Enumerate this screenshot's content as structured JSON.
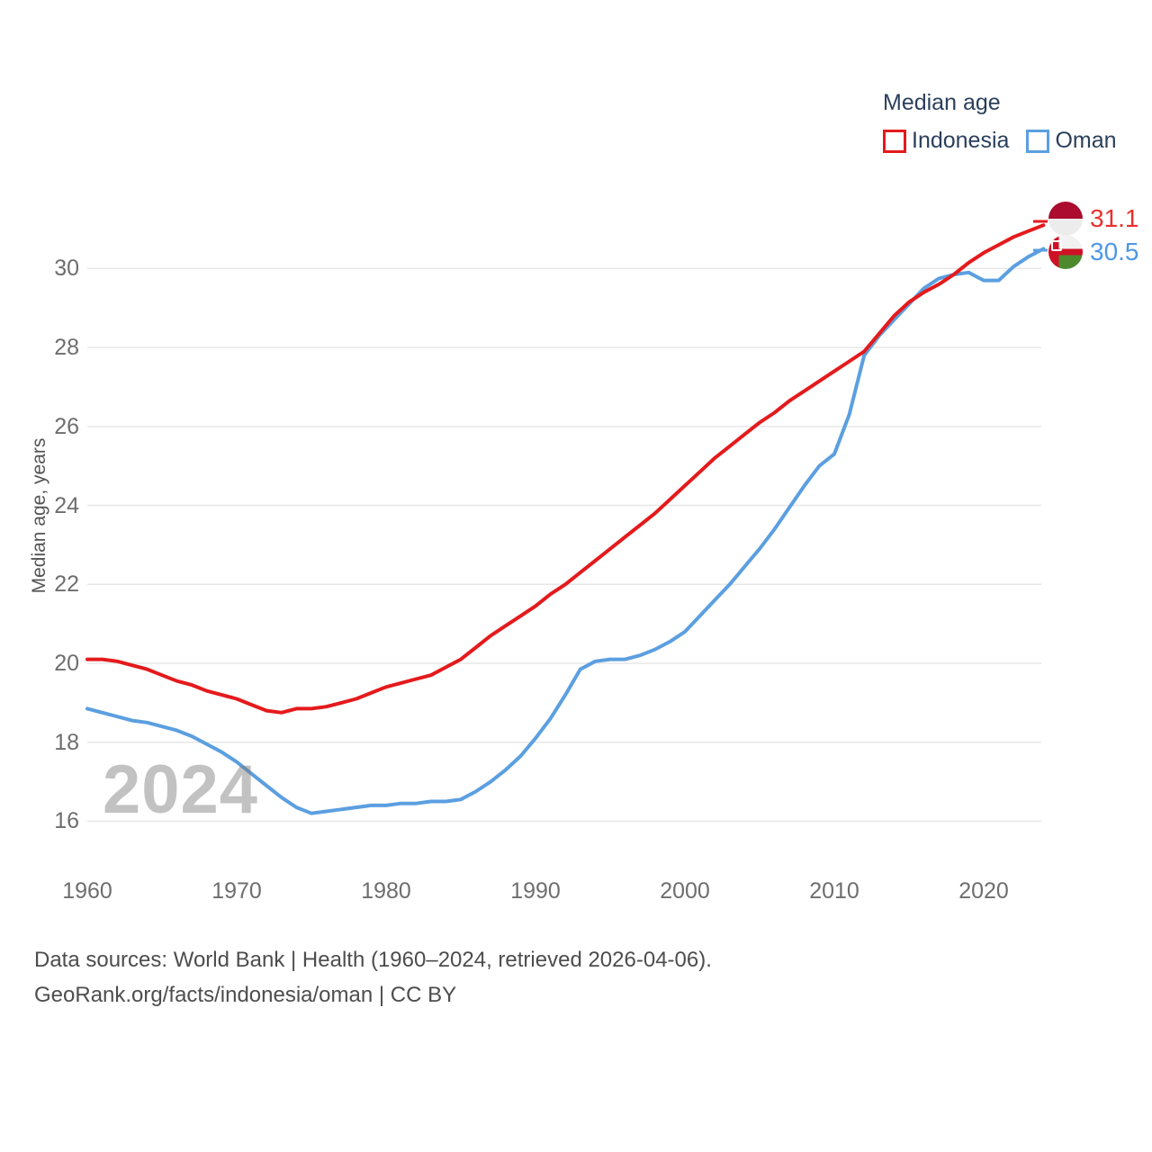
{
  "page": {
    "background": "#ffffff"
  },
  "legend": {
    "title": "Median age",
    "items": [
      {
        "label": "Indonesia",
        "color": "#e41a1c"
      },
      {
        "label": "Oman",
        "color": "#5b9fe0"
      }
    ]
  },
  "end_labels": [
    {
      "series": "Indonesia",
      "value": "31.1",
      "color": "#e8312f",
      "flag": "indonesia-flag"
    },
    {
      "series": "Oman",
      "value": "30.5",
      "color": "#4e97e3",
      "flag": "oman-flag"
    }
  ],
  "watermark": "2024",
  "y_axis": {
    "title": "Median age, years",
    "ticks": [
      30,
      28,
      26,
      24,
      22,
      20,
      18,
      16
    ]
  },
  "x_axis": {
    "ticks": [
      1960,
      1970,
      1980,
      1990,
      2000,
      2010,
      2020
    ]
  },
  "footer": {
    "line1": "Data sources: World Bank | Health (1960–2024, retrieved 2026-04-06).",
    "line2": "GeoRank.org/facts/indonesia/oman | CC BY"
  },
  "chart_data": {
    "type": "line",
    "title": "Median age",
    "xlabel": "",
    "ylabel": "Median age, years",
    "xlim": [
      1960,
      2024
    ],
    "ylim": [
      15.5,
      31.5
    ],
    "grid": "horizontal",
    "legend_position": "top-right",
    "x": [
      1960,
      1961,
      1962,
      1963,
      1964,
      1965,
      1966,
      1967,
      1968,
      1969,
      1970,
      1971,
      1972,
      1973,
      1974,
      1975,
      1976,
      1977,
      1978,
      1979,
      1980,
      1981,
      1982,
      1983,
      1984,
      1985,
      1986,
      1987,
      1988,
      1989,
      1990,
      1991,
      1992,
      1993,
      1994,
      1995,
      1996,
      1997,
      1998,
      1999,
      2000,
      2001,
      2002,
      2003,
      2004,
      2005,
      2006,
      2007,
      2008,
      2009,
      2010,
      2011,
      2012,
      2013,
      2014,
      2015,
      2016,
      2017,
      2018,
      2019,
      2020,
      2021,
      2022,
      2023,
      2024
    ],
    "series": [
      {
        "name": "Indonesia",
        "color": "#e41a1c",
        "end_label": "31.1",
        "values": [
          20.1,
          20.1,
          20.05,
          19.95,
          19.85,
          19.7,
          19.55,
          19.45,
          19.3,
          19.2,
          19.1,
          18.95,
          18.8,
          18.75,
          18.85,
          18.85,
          18.9,
          19.0,
          19.1,
          19.25,
          19.4,
          19.5,
          19.6,
          19.7,
          19.9,
          20.1,
          20.4,
          20.7,
          20.95,
          21.2,
          21.45,
          21.75,
          22.0,
          22.3,
          22.6,
          22.9,
          23.2,
          23.5,
          23.8,
          24.15,
          24.5,
          24.85,
          25.2,
          25.5,
          25.8,
          26.1,
          26.35,
          26.65,
          26.9,
          27.15,
          27.4,
          27.65,
          27.9,
          28.35,
          28.8,
          29.15,
          29.4,
          29.6,
          29.85,
          30.15,
          30.4,
          30.6,
          30.8,
          30.95,
          31.1
        ]
      },
      {
        "name": "Oman",
        "color": "#5b9fe0",
        "end_label": "30.5",
        "values": [
          18.85,
          18.75,
          18.65,
          18.55,
          18.5,
          18.4,
          18.3,
          18.15,
          17.95,
          17.75,
          17.5,
          17.2,
          16.9,
          16.6,
          16.35,
          16.2,
          16.25,
          16.3,
          16.35,
          16.4,
          16.4,
          16.45,
          16.45,
          16.5,
          16.5,
          16.55,
          16.75,
          17.0,
          17.3,
          17.65,
          18.1,
          18.6,
          19.2,
          19.85,
          20.05,
          20.1,
          20.1,
          20.2,
          20.35,
          20.55,
          20.8,
          21.2,
          21.6,
          22.0,
          22.45,
          22.9,
          23.4,
          23.95,
          24.5,
          25.0,
          25.3,
          26.3,
          27.8,
          28.3,
          28.7,
          29.1,
          29.5,
          29.75,
          29.85,
          29.9,
          29.7,
          29.7,
          30.05,
          30.3,
          30.5
        ]
      }
    ]
  }
}
